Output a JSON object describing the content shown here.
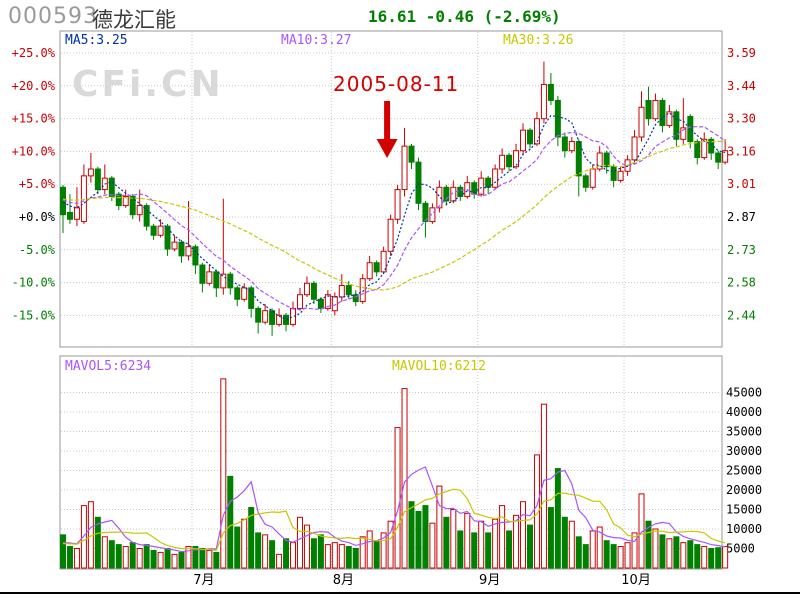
{
  "header": {
    "code": "000593",
    "name": "德龙汇能",
    "quote": "16.61 -0.46 (-2.69%)"
  },
  "watermark": "CFi.CN",
  "annotation": {
    "date": "2005-08-11"
  },
  "main_panel": {
    "ma5_label": "MA5:3.25",
    "ma10_label": "MA10:3.27",
    "ma30_label": "MA30:3.26"
  },
  "volume_panel": {
    "mavol5_label": "MAVOL5:6234",
    "mavol10_label": "MAVOL10:6212"
  },
  "colors": {
    "up": "#cc0000",
    "down": "#008000",
    "ma5": "#0033aa",
    "ma10": "#aa55ff",
    "ma30": "#c8c800",
    "mavol5": "#aa55ff",
    "mavol10": "#c8c800",
    "grid": "#c8c8c8",
    "border": "#999999",
    "axis_red": "#cc0000",
    "axis_green": "#008000",
    "axis_black": "#000000",
    "annotation": "#d40000",
    "quote": "#008000"
  },
  "chart_data": {
    "type": "candlestick",
    "title": "000593 德龙汇能",
    "base_price": 2.87,
    "left_axis_ticks": [
      {
        "pct": 25,
        "label": "+25.0%",
        "price": "3.59"
      },
      {
        "pct": 20,
        "label": "+20.0%",
        "price": "3.44"
      },
      {
        "pct": 15,
        "label": "+15.0%",
        "price": "3.30"
      },
      {
        "pct": 10,
        "label": "+10.0%",
        "price": "3.16"
      },
      {
        "pct": 5,
        "label": "+5.0%",
        "price": "3.01"
      },
      {
        "pct": 0,
        "label": "+0.0%",
        "price": "2.87"
      },
      {
        "pct": -5,
        "label": "-5.0%",
        "price": "2.73"
      },
      {
        "pct": -10,
        "label": "-10.0%",
        "price": "2.58"
      },
      {
        "pct": -15,
        "label": "-15.0%",
        "price": "2.44"
      }
    ],
    "volume_axis_ticks": [
      45000,
      40000,
      35000,
      30000,
      25000,
      20000,
      15000,
      10000,
      5000
    ],
    "months": [
      {
        "label": "7月",
        "start_index": 19
      },
      {
        "label": "8月",
        "start_index": 39
      },
      {
        "label": "9月",
        "start_index": 60
      },
      {
        "label": "10月",
        "start_index": 81
      }
    ],
    "annotation_index": 47,
    "columns": [
      "open",
      "high",
      "low",
      "close",
      "volume"
    ],
    "candles": [
      [
        3.0,
        3.01,
        2.8,
        2.88,
        8500
      ],
      [
        2.89,
        2.97,
        2.84,
        2.86,
        5500
      ],
      [
        2.86,
        3.0,
        2.83,
        2.91,
        5000
      ],
      [
        2.85,
        3.1,
        2.84,
        3.05,
        16000
      ],
      [
        3.05,
        3.15,
        3.02,
        3.08,
        17000
      ],
      [
        3.08,
        3.09,
        2.97,
        2.99,
        13000
      ],
      [
        2.99,
        3.1,
        2.97,
        3.04,
        8000
      ],
      [
        3.04,
        3.05,
        2.94,
        2.96,
        7000
      ],
      [
        2.97,
        2.98,
        2.9,
        2.92,
        6000
      ],
      [
        2.92,
        2.99,
        2.91,
        2.96,
        5500
      ],
      [
        2.96,
        2.97,
        2.86,
        2.88,
        6500
      ],
      [
        2.88,
        2.99,
        2.85,
        2.92,
        5000
      ],
      [
        2.92,
        2.93,
        2.81,
        2.83,
        6000
      ],
      [
        2.83,
        2.84,
        2.77,
        2.79,
        4500
      ],
      [
        2.79,
        2.86,
        2.78,
        2.83,
        4000
      ],
      [
        2.83,
        2.84,
        2.7,
        2.73,
        5000
      ],
      [
        2.73,
        2.79,
        2.72,
        2.76,
        3500
      ],
      [
        2.76,
        2.77,
        2.67,
        2.7,
        4000
      ],
      [
        2.7,
        2.94,
        2.68,
        2.74,
        5500
      ],
      [
        2.74,
        2.75,
        2.62,
        2.66,
        5500
      ],
      [
        2.66,
        2.67,
        2.54,
        2.58,
        5000
      ],
      [
        2.58,
        2.66,
        2.57,
        2.63,
        4500
      ],
      [
        2.63,
        2.64,
        2.52,
        2.56,
        4000
      ],
      [
        2.56,
        2.95,
        2.53,
        2.62,
        48500
      ],
      [
        2.62,
        2.63,
        2.53,
        2.56,
        23500
      ],
      [
        2.56,
        2.57,
        2.48,
        2.51,
        10500
      ],
      [
        2.51,
        2.58,
        2.5,
        2.56,
        12500
      ],
      [
        2.56,
        2.57,
        2.43,
        2.47,
        15500
      ],
      [
        2.47,
        2.48,
        2.36,
        2.41,
        9000
      ],
      [
        2.41,
        2.49,
        2.4,
        2.46,
        8500
      ],
      [
        2.46,
        2.47,
        2.35,
        2.4,
        7000
      ],
      [
        2.4,
        2.47,
        2.39,
        2.44,
        3500
      ],
      [
        2.44,
        2.45,
        2.37,
        2.4,
        7500
      ],
      [
        2.4,
        2.5,
        2.39,
        2.47,
        6500
      ],
      [
        2.47,
        2.56,
        2.46,
        2.53,
        13000
      ],
      [
        2.53,
        2.61,
        2.52,
        2.58,
        11000
      ],
      [
        2.58,
        2.59,
        2.49,
        2.51,
        7500
      ],
      [
        2.51,
        2.52,
        2.45,
        2.47,
        8500
      ],
      [
        2.47,
        2.55,
        2.46,
        2.53,
        6000
      ],
      [
        2.46,
        2.54,
        2.44,
        2.52,
        6500
      ],
      [
        2.52,
        2.62,
        2.5,
        2.57,
        6000
      ],
      [
        2.57,
        2.59,
        2.51,
        2.53,
        5500
      ],
      [
        2.53,
        2.55,
        2.48,
        2.5,
        5000
      ],
      [
        2.5,
        2.62,
        2.49,
        2.6,
        8000
      ],
      [
        2.6,
        2.7,
        2.59,
        2.67,
        9500
      ],
      [
        2.67,
        2.68,
        2.61,
        2.63,
        7000
      ],
      [
        2.63,
        2.74,
        2.62,
        2.72,
        9000
      ],
      [
        2.72,
        2.88,
        2.7,
        2.86,
        12000
      ],
      [
        2.86,
        3.01,
        2.84,
        2.99,
        36000
      ],
      [
        2.99,
        3.26,
        2.96,
        3.18,
        46000
      ],
      [
        3.18,
        3.19,
        3.08,
        3.11,
        17000
      ],
      [
        3.11,
        3.13,
        2.9,
        2.93,
        14500
      ],
      [
        2.93,
        2.94,
        2.78,
        2.85,
        16000
      ],
      [
        2.85,
        2.93,
        2.84,
        2.91,
        11500
      ],
      [
        2.91,
        3.03,
        2.89,
        3.0,
        21000
      ],
      [
        3.0,
        3.01,
        2.92,
        2.94,
        13000
      ],
      [
        2.94,
        3.03,
        2.93,
        3.0,
        15000
      ],
      [
        3.0,
        3.01,
        2.94,
        2.96,
        9500
      ],
      [
        2.96,
        3.05,
        2.95,
        3.02,
        14000
      ],
      [
        3.02,
        3.03,
        2.95,
        2.97,
        9000
      ],
      [
        2.97,
        3.07,
        2.96,
        3.04,
        12000
      ],
      [
        3.04,
        3.05,
        2.97,
        3.0,
        9000
      ],
      [
        3.0,
        3.1,
        2.99,
        3.08,
        12500
      ],
      [
        3.08,
        3.17,
        3.06,
        3.14,
        16000
      ],
      [
        3.14,
        3.15,
        3.07,
        3.09,
        9500
      ],
      [
        3.09,
        3.19,
        3.08,
        3.16,
        13500
      ],
      [
        3.16,
        3.28,
        3.14,
        3.25,
        17000
      ],
      [
        3.25,
        3.26,
        3.17,
        3.19,
        11000
      ],
      [
        3.19,
        3.33,
        3.18,
        3.3,
        29000
      ],
      [
        3.3,
        3.55,
        3.28,
        3.45,
        42000
      ],
      [
        3.45,
        3.5,
        3.36,
        3.38,
        15500
      ],
      [
        3.38,
        3.4,
        3.18,
        3.22,
        25500
      ],
      [
        3.22,
        3.24,
        3.13,
        3.16,
        13000
      ],
      [
        3.16,
        3.22,
        3.15,
        3.2,
        12000
      ],
      [
        3.2,
        3.21,
        2.96,
        3.05,
        8000
      ],
      [
        3.05,
        3.06,
        2.98,
        3.0,
        6000
      ],
      [
        3.0,
        3.1,
        2.99,
        3.08,
        9500
      ],
      [
        3.08,
        3.18,
        3.07,
        3.15,
        10500
      ],
      [
        3.15,
        3.16,
        3.06,
        3.09,
        7000
      ],
      [
        3.09,
        3.1,
        3.0,
        3.03,
        6000
      ],
      [
        3.03,
        3.09,
        3.02,
        3.07,
        5500
      ],
      [
        3.07,
        3.14,
        3.05,
        3.12,
        6500
      ],
      [
        3.12,
        3.25,
        3.1,
        3.22,
        9000
      ],
      [
        3.22,
        3.42,
        3.2,
        3.35,
        19000
      ],
      [
        3.38,
        3.44,
        3.27,
        3.3,
        12000
      ],
      [
        3.3,
        3.41,
        3.29,
        3.38,
        10000
      ],
      [
        3.38,
        3.39,
        3.24,
        3.27,
        8500
      ],
      [
        3.27,
        3.36,
        3.26,
        3.33,
        7500
      ],
      [
        3.33,
        3.34,
        3.18,
        3.21,
        8000
      ],
      [
        3.21,
        3.39,
        3.19,
        3.26,
        6500
      ],
      [
        3.31,
        3.32,
        3.17,
        3.2,
        7000
      ],
      [
        3.2,
        3.21,
        3.1,
        3.13,
        6000
      ],
      [
        3.13,
        3.24,
        3.12,
        3.21,
        5500
      ],
      [
        3.21,
        3.22,
        3.12,
        3.15,
        5000
      ],
      [
        3.15,
        3.16,
        3.08,
        3.11,
        5200
      ],
      [
        3.11,
        3.21,
        3.1,
        3.16,
        5500
      ]
    ]
  }
}
